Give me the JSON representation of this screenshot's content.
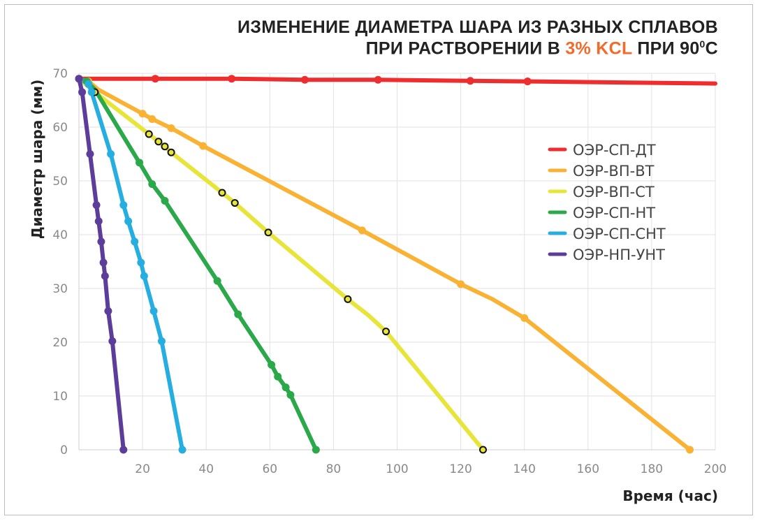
{
  "title": {
    "line1": "ИЗМЕНЕНИЕ ДИАМЕТРА ШАРА ИЗ РАЗНЫХ СПЛАВОВ",
    "line2_prefix": "ПРИ РАСТВОРЕНИИ В ",
    "line2_accent": "3% KCL",
    "line2_suffix": " ПРИ 90",
    "line2_sup": "0",
    "line2_end": "С",
    "accent_color": "#f26b2a"
  },
  "chart_data": {
    "type": "line",
    "xlabel": "Время (час)",
    "ylabel": "Диаметр шара (мм)",
    "xlim": [
      0,
      200
    ],
    "ylim": [
      0,
      70
    ],
    "xticks": [
      "20",
      "40",
      "60",
      "80",
      "100",
      "120",
      "140",
      "160",
      "180",
      "200"
    ],
    "yticks": [
      "0",
      "10",
      "20",
      "30",
      "40",
      "50",
      "60",
      "70"
    ],
    "grid": true,
    "legend_position": "right",
    "series": [
      {
        "name": "ОЭР-СП-ДТ",
        "color": "#ee2e2e",
        "marker": "dot",
        "points": [
          [
            0,
            69
          ],
          [
            24,
            69
          ],
          [
            48,
            69
          ],
          [
            71,
            68.8
          ],
          [
            94,
            68.8
          ],
          [
            123,
            68.6
          ],
          [
            141,
            68.5
          ],
          [
            200,
            68.1
          ]
        ],
        "marker_points": [
          [
            0,
            69
          ],
          [
            24,
            69
          ],
          [
            48,
            69
          ],
          [
            71,
            68.8
          ],
          [
            94,
            68.8
          ],
          [
            123,
            68.6
          ],
          [
            141,
            68.5
          ]
        ]
      },
      {
        "name": "ОЭР-ВП-ВТ",
        "color": "#f9b233",
        "marker": "dot",
        "points": [
          [
            0,
            69
          ],
          [
            3,
            68.5
          ],
          [
            6,
            67
          ],
          [
            20,
            62.5
          ],
          [
            23,
            61.5
          ],
          [
            29,
            59.8
          ],
          [
            39,
            56.5
          ],
          [
            89,
            40.8
          ],
          [
            120,
            30.8
          ],
          [
            130,
            28
          ],
          [
            140,
            24.5
          ],
          [
            192,
            0
          ]
        ],
        "marker_points": [
          [
            3,
            68.5
          ],
          [
            20,
            62.5
          ],
          [
            23,
            61.5
          ],
          [
            29,
            59.8
          ],
          [
            39,
            56.5
          ],
          [
            89,
            40.8
          ],
          [
            120,
            30.8
          ],
          [
            140,
            24.5
          ],
          [
            192,
            0
          ]
        ]
      },
      {
        "name": "ОЭР-ВП-СТ",
        "color": "#e7e539",
        "marker": "open-circle",
        "points": [
          [
            0,
            69
          ],
          [
            5,
            66.5
          ],
          [
            22,
            58.7
          ],
          [
            25,
            57.3
          ],
          [
            27,
            56.4
          ],
          [
            29,
            55.3
          ],
          [
            45,
            47.8
          ],
          [
            49,
            45.9
          ],
          [
            59.5,
            40.4
          ],
          [
            84.5,
            28
          ],
          [
            91,
            25
          ],
          [
            96.5,
            22
          ],
          [
            127,
            0
          ]
        ],
        "marker_points": [
          [
            5,
            66.5
          ],
          [
            22,
            58.7
          ],
          [
            25,
            57.3
          ],
          [
            27,
            56.4
          ],
          [
            29,
            55.3
          ],
          [
            45,
            47.8
          ],
          [
            49,
            45.9
          ],
          [
            59.5,
            40.4
          ],
          [
            84.5,
            28
          ],
          [
            96.5,
            22
          ],
          [
            127,
            0
          ]
        ]
      },
      {
        "name": "ОЭР-СП-НТ",
        "color": "#2ba84a",
        "marker": "dot",
        "points": [
          [
            0,
            69
          ],
          [
            2.5,
            68.5
          ],
          [
            5,
            67
          ],
          [
            19,
            53.4
          ],
          [
            23,
            49.4
          ],
          [
            27,
            46.3
          ],
          [
            43.5,
            31.4
          ],
          [
            50,
            25.2
          ],
          [
            60.5,
            15.8
          ],
          [
            62.5,
            13.6
          ],
          [
            65,
            11.6
          ],
          [
            66.5,
            10.2
          ],
          [
            74.5,
            0
          ]
        ],
        "marker_points": [
          [
            2.5,
            68.5
          ],
          [
            19,
            53.4
          ],
          [
            23,
            49.4
          ],
          [
            27,
            46.3
          ],
          [
            43.5,
            31.4
          ],
          [
            50,
            25.2
          ],
          [
            60.5,
            15.8
          ],
          [
            62.5,
            13.6
          ],
          [
            65,
            11.6
          ],
          [
            66.5,
            10.2
          ],
          [
            74.5,
            0
          ]
        ]
      },
      {
        "name": "ОЭР-СП-СНТ",
        "color": "#27aee1",
        "marker": "dot",
        "points": [
          [
            0,
            69
          ],
          [
            3,
            68
          ],
          [
            4,
            66.5
          ],
          [
            10,
            55
          ],
          [
            14,
            45.5
          ],
          [
            15.5,
            42.5
          ],
          [
            17.5,
            38.7
          ],
          [
            19.5,
            34.8
          ],
          [
            20.5,
            32.3
          ],
          [
            23.5,
            25.8
          ],
          [
            26,
            20.2
          ],
          [
            32.5,
            0
          ]
        ],
        "marker_points": [
          [
            3,
            68
          ],
          [
            4,
            66.5
          ],
          [
            10,
            55
          ],
          [
            14,
            45.5
          ],
          [
            15.5,
            42.5
          ],
          [
            17.5,
            38.7
          ],
          [
            19.5,
            34.8
          ],
          [
            20.5,
            32.3
          ],
          [
            23.5,
            25.8
          ],
          [
            26,
            20.2
          ],
          [
            32.5,
            0
          ]
        ]
      },
      {
        "name": "ОЭР-НП-УНТ",
        "color": "#5c3d99",
        "marker": "dot",
        "points": [
          [
            0,
            69
          ],
          [
            1,
            66.5
          ],
          [
            3.5,
            55
          ],
          [
            5.5,
            45.5
          ],
          [
            6.2,
            42.5
          ],
          [
            7,
            38.7
          ],
          [
            7.7,
            34.8
          ],
          [
            8.2,
            32.3
          ],
          [
            9.2,
            25.8
          ],
          [
            10.5,
            20.2
          ],
          [
            14,
            0
          ]
        ],
        "marker_points": [
          [
            0,
            69
          ],
          [
            1,
            66.5
          ],
          [
            3.5,
            55
          ],
          [
            5.5,
            45.5
          ],
          [
            6.2,
            42.5
          ],
          [
            7,
            38.7
          ],
          [
            7.7,
            34.8
          ],
          [
            8.2,
            32.3
          ],
          [
            9.2,
            25.8
          ],
          [
            10.5,
            20.2
          ],
          [
            14,
            0
          ]
        ]
      }
    ]
  }
}
